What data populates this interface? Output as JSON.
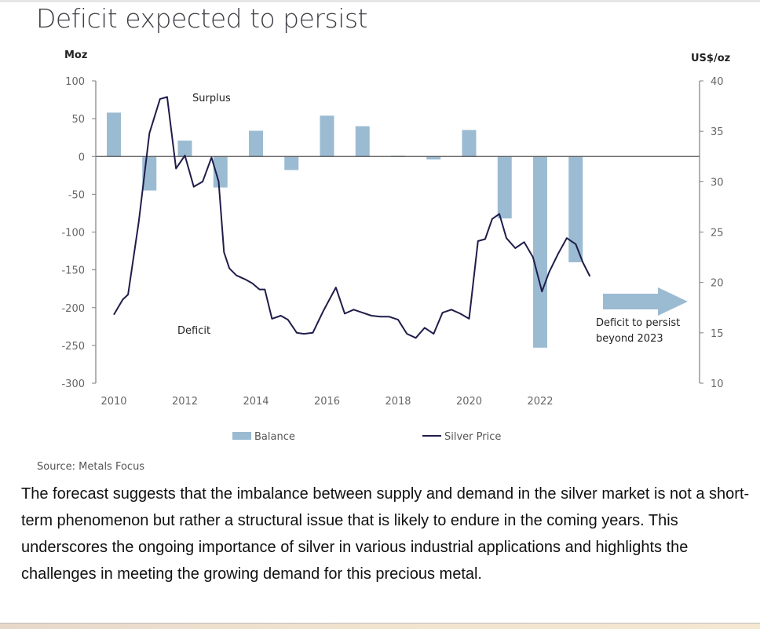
{
  "title": "Deficit expected to persist",
  "source": "Source: Metals Focus",
  "paragraph": "The forecast suggests that the imbalance between supply and demand in the silver market is not a short-term phenomenon but rather a structural issue that is likely to endure in the coming years. This underscores the ongoing importance of silver in various industrial applications and highlights the challenges in meeting the growing demand for this precious metal.",
  "colors": {
    "bar": "#9bbbd2",
    "line": "#1f1d4a",
    "axis": "#7f7f7f",
    "arrow": "#9bbbd2"
  },
  "chart_data": {
    "type": "bar+line",
    "title": "Deficit expected to persist",
    "left_axis": {
      "label": "Moz",
      "range": [
        -300,
        100
      ],
      "ticks": [
        100,
        50,
        0,
        -50,
        -100,
        -150,
        -200,
        -250,
        -300
      ]
    },
    "right_axis": {
      "label": "US$/oz",
      "range": [
        10,
        40
      ],
      "ticks": [
        40,
        35,
        30,
        25,
        20,
        15,
        10
      ]
    },
    "x_ticks": [
      "2010",
      "2012",
      "2014",
      "2016",
      "2018",
      "2020",
      "2022"
    ],
    "annotations": {
      "surplus": "Surplus",
      "deficit": "Deficit",
      "arrow_text_1": "Deficit to persist",
      "arrow_text_2": "beyond 2023"
    },
    "legend": {
      "position": "bottom",
      "entries": [
        "Balance",
        "Silver Price"
      ]
    },
    "series": [
      {
        "name": "Balance",
        "type": "bar",
        "axis": "left",
        "x": [
          2010,
          2011,
          2012,
          2013,
          2014,
          2015,
          2016,
          2017,
          2018,
          2019,
          2020,
          2021,
          2022,
          2023
        ],
        "values": [
          58,
          -45,
          21,
          -41,
          34,
          -18,
          54,
          40,
          1,
          -4,
          35,
          -82,
          -253,
          -140
        ]
      },
      {
        "name": "Silver Price",
        "type": "line",
        "axis": "right",
        "x": [
          2010.0,
          2010.25,
          2010.4,
          2010.7,
          2011.0,
          2011.3,
          2011.5,
          2011.75,
          2012.0,
          2012.25,
          2012.5,
          2012.75,
          2012.95,
          2013.1,
          2013.25,
          2013.45,
          2013.7,
          2013.9,
          2014.1,
          2014.25,
          2014.45,
          2014.7,
          2014.9,
          2015.15,
          2015.35,
          2015.6,
          2015.9,
          2016.25,
          2016.5,
          2016.75,
          2017.0,
          2017.25,
          2017.5,
          2017.75,
          2018.0,
          2018.25,
          2018.5,
          2018.75,
          2019.0,
          2019.25,
          2019.5,
          2019.75,
          2020.0,
          2020.25,
          2020.45,
          2020.65,
          2020.85,
          2021.05,
          2021.3,
          2021.55,
          2021.8,
          2022.05,
          2022.25,
          2022.5,
          2022.75,
          2023.0,
          2023.2,
          2023.4
        ],
        "values": [
          16.8,
          18.3,
          18.8,
          26.0,
          34.8,
          38.2,
          38.4,
          31.3,
          32.6,
          29.5,
          30.0,
          32.4,
          30.0,
          23.0,
          21.4,
          20.7,
          20.3,
          19.9,
          19.3,
          19.3,
          16.4,
          16.7,
          16.3,
          15.0,
          14.9,
          15.0,
          17.2,
          19.5,
          16.9,
          17.3,
          17.0,
          16.7,
          16.6,
          16.6,
          16.3,
          14.9,
          14.5,
          15.5,
          14.9,
          17.0,
          17.3,
          16.9,
          16.4,
          24.1,
          24.3,
          26.3,
          26.8,
          24.4,
          23.4,
          24.0,
          22.5,
          19.1,
          21.0,
          22.8,
          24.4,
          23.8,
          22.0,
          20.6
        ]
      }
    ]
  }
}
